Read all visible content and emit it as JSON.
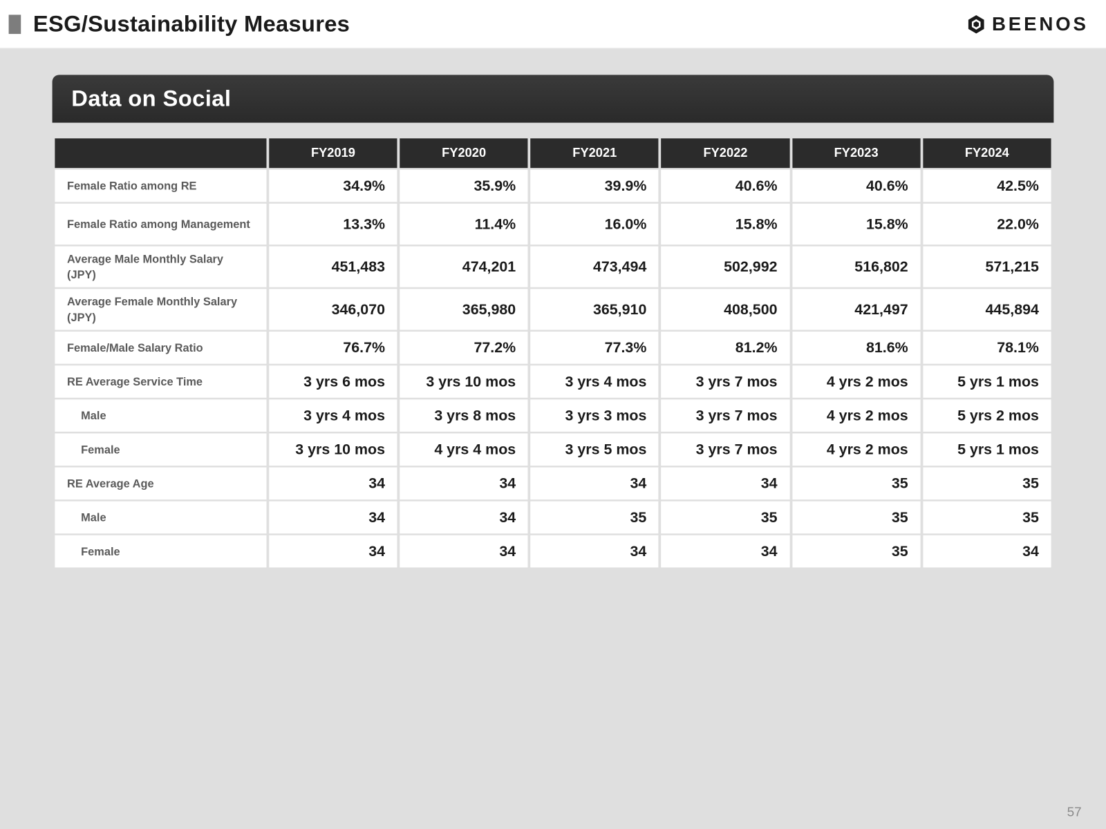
{
  "page_title": "ESG/Sustainability Measures",
  "logo_text": "BEENOS",
  "section_title": "Data on Social",
  "page_number": "57",
  "table": {
    "columns": [
      "FY2019",
      "FY2020",
      "FY2021",
      "FY2022",
      "FY2023",
      "FY2024"
    ],
    "rows": [
      {
        "label": "Female Ratio among RE",
        "sub": false,
        "tall": false,
        "vals": [
          "34.9%",
          "35.9%",
          "39.9%",
          "40.6%",
          "40.6%",
          "42.5%"
        ]
      },
      {
        "label": "Female Ratio among Management",
        "sub": false,
        "tall": true,
        "vals": [
          "13.3%",
          "11.4%",
          "16.0%",
          "15.8%",
          "15.8%",
          "22.0%"
        ]
      },
      {
        "label": "Average Male Monthly Salary (JPY)",
        "sub": false,
        "tall": true,
        "vals": [
          "451,483",
          "474,201",
          "473,494",
          "502,992",
          "516,802",
          "571,215"
        ]
      },
      {
        "label": "Average Female Monthly Salary (JPY)",
        "sub": false,
        "tall": true,
        "vals": [
          "346,070",
          "365,980",
          "365,910",
          "408,500",
          "421,497",
          "445,894"
        ]
      },
      {
        "label": "Female/Male Salary Ratio",
        "sub": false,
        "tall": false,
        "vals": [
          "76.7%",
          "77.2%",
          "77.3%",
          "81.2%",
          "81.6%",
          "78.1%"
        ]
      },
      {
        "label": "RE Average Service Time",
        "sub": false,
        "tall": false,
        "vals": [
          "3 yrs 6 mos",
          "3 yrs 10 mos",
          "3 yrs 4 mos",
          "3 yrs 7 mos",
          "4 yrs 2 mos",
          "5 yrs 1 mos"
        ]
      },
      {
        "label": "Male",
        "sub": true,
        "tall": false,
        "vals": [
          "3 yrs 4 mos",
          "3 yrs 8 mos",
          "3 yrs 3 mos",
          "3 yrs 7 mos",
          "4 yrs 2 mos",
          "5 yrs 2 mos"
        ]
      },
      {
        "label": "Female",
        "sub": true,
        "tall": false,
        "vals": [
          "3 yrs 10 mos",
          "4 yrs 4 mos",
          "3 yrs 5 mos",
          "3 yrs 7 mos",
          "4 yrs 2 mos",
          "5 yrs 1 mos"
        ]
      },
      {
        "label": "RE Average Age",
        "sub": false,
        "tall": false,
        "vals": [
          "34",
          "34",
          "34",
          "34",
          "35",
          "35"
        ]
      },
      {
        "label": "Male",
        "sub": true,
        "tall": false,
        "vals": [
          "34",
          "34",
          "35",
          "35",
          "35",
          "35"
        ]
      },
      {
        "label": "Female",
        "sub": true,
        "tall": false,
        "vals": [
          "34",
          "34",
          "34",
          "34",
          "35",
          "34"
        ]
      }
    ]
  }
}
